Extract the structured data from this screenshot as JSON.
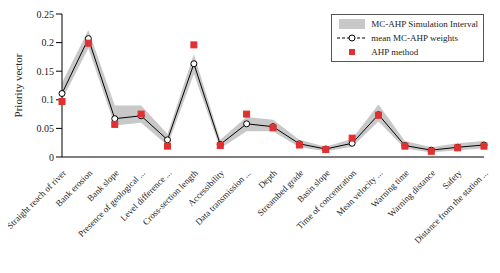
{
  "chart_data": {
    "type": "line",
    "y_label": "Priority vector",
    "categories": [
      "Straight reach of river",
      "Bank erosion",
      "Bank slope",
      "Presence of geological ...",
      "Level difference ...",
      "Cross-section length",
      "Accessibility",
      "Data transmission ...",
      "Depth",
      "Streambed grade",
      "Basin slope",
      "Time of concentration",
      "Mean velocity ...",
      "Warning time",
      "Warning distance",
      "Safety",
      "Distance from the station ..."
    ],
    "series": [
      {
        "name": "MC-AHP Simulation Interval",
        "type": "band",
        "color": "#c8c8c8",
        "lower": [
          0.1,
          0.19,
          0.055,
          0.06,
          0.02,
          0.145,
          0.015,
          0.045,
          0.045,
          0.017,
          0.01,
          0.018,
          0.062,
          0.015,
          0.008,
          0.012,
          0.015
        ],
        "upper": [
          0.13,
          0.222,
          0.09,
          0.09,
          0.04,
          0.18,
          0.03,
          0.07,
          0.065,
          0.03,
          0.018,
          0.032,
          0.092,
          0.028,
          0.017,
          0.024,
          0.028
        ]
      },
      {
        "name": "mean MC-AHP weights",
        "type": "line",
        "marker": "circle",
        "line_style": "solid",
        "color": "#000000",
        "values": [
          0.111,
          0.207,
          0.067,
          0.072,
          0.03,
          0.163,
          0.022,
          0.058,
          0.053,
          0.023,
          0.014,
          0.024,
          0.074,
          0.02,
          0.012,
          0.017,
          0.021
        ]
      },
      {
        "name": "AHP method",
        "type": "scatter",
        "marker": "square",
        "line_style": "none",
        "color": "#e03030",
        "values": [
          0.097,
          0.199,
          0.057,
          0.075,
          0.019,
          0.196,
          0.02,
          0.075,
          0.051,
          0.021,
          0.013,
          0.033,
          0.073,
          0.019,
          0.01,
          0.016,
          0.019
        ]
      }
    ],
    "ylim": [
      0,
      0.25
    ],
    "yticks": [
      0,
      0.05,
      0.1,
      0.15,
      0.2,
      0.25
    ],
    "grid": false,
    "legend": "upper right"
  }
}
